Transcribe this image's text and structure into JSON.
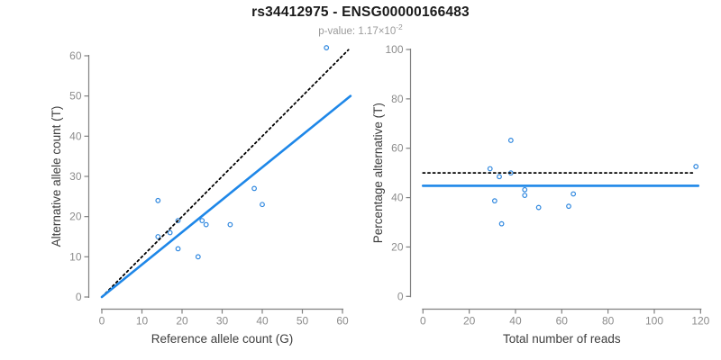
{
  "page": {
    "title": "rs34412975 - ENSG00000166483",
    "subtitle": {
      "text": "p-value: 1.17×10",
      "exponent": "-2"
    }
  },
  "colors": {
    "title": "#1A1A1A",
    "subtitle": "#9B9B9B",
    "axis_line": "#808080",
    "tick_label": "#8C8C8C",
    "axis_title": "#3D3D3D",
    "line_blue": "#1E87E8",
    "point_blue": "#2E87DF",
    "line_black": "#000000"
  },
  "chart_data": [
    {
      "name": "ref-vs-alt-scatter",
      "type": "scatter",
      "xlabel": "Reference allele count (G)",
      "ylabel": "Alternative allele count (T)",
      "xlim": [
        0,
        62
      ],
      "ylim": [
        0,
        62
      ],
      "xticks": [
        0,
        10,
        20,
        30,
        40,
        50,
        60
      ],
      "yticks": [
        0,
        10,
        20,
        30,
        40,
        50,
        60
      ],
      "grid": false,
      "legend": false,
      "points": [
        [
          14,
          24
        ],
        [
          19,
          19
        ],
        [
          14,
          15
        ],
        [
          17,
          16
        ],
        [
          25,
          19
        ],
        [
          26,
          18
        ],
        [
          32,
          18
        ],
        [
          19,
          12
        ],
        [
          24,
          10
        ],
        [
          38,
          27
        ],
        [
          40,
          23
        ],
        [
          56,
          62
        ]
      ],
      "lines": [
        {
          "name": "identity-line",
          "style": "dotted",
          "color": "#000000",
          "from": [
            0,
            0
          ],
          "to": [
            61.5,
            61.5
          ]
        },
        {
          "name": "fitted-line",
          "style": "solid",
          "color": "#1E87E8",
          "from": [
            0,
            0
          ],
          "to": [
            62,
            50
          ]
        }
      ]
    },
    {
      "name": "reads-vs-percentage-scatter",
      "type": "scatter",
      "xlabel": "Total number of reads",
      "ylabel": "Percentage alternative (T)",
      "xlim": [
        0,
        120
      ],
      "ylim": [
        0,
        100
      ],
      "xticks": [
        0,
        20,
        40,
        60,
        80,
        100,
        120
      ],
      "yticks": [
        0,
        20,
        40,
        60,
        80,
        100
      ],
      "grid": false,
      "legend": false,
      "points": [
        [
          38,
          63.2
        ],
        [
          29,
          51.7
        ],
        [
          38,
          50
        ],
        [
          33,
          48.5
        ],
        [
          44,
          43.2
        ],
        [
          44,
          40.9
        ],
        [
          31,
          38.7
        ],
        [
          50,
          36
        ],
        [
          34,
          29.4
        ],
        [
          65,
          41.5
        ],
        [
          63,
          36.5
        ],
        [
          118,
          52.6
        ]
      ],
      "lines": [
        {
          "name": "expected-50-percent-line",
          "style": "dotted",
          "color": "#000000",
          "from": [
            0,
            50
          ],
          "to": [
            117,
            50
          ]
        },
        {
          "name": "mean-percentage-line",
          "style": "solid",
          "color": "#1E87E8",
          "from": [
            0,
            44.8
          ],
          "to": [
            119,
            44.8
          ]
        }
      ]
    }
  ]
}
